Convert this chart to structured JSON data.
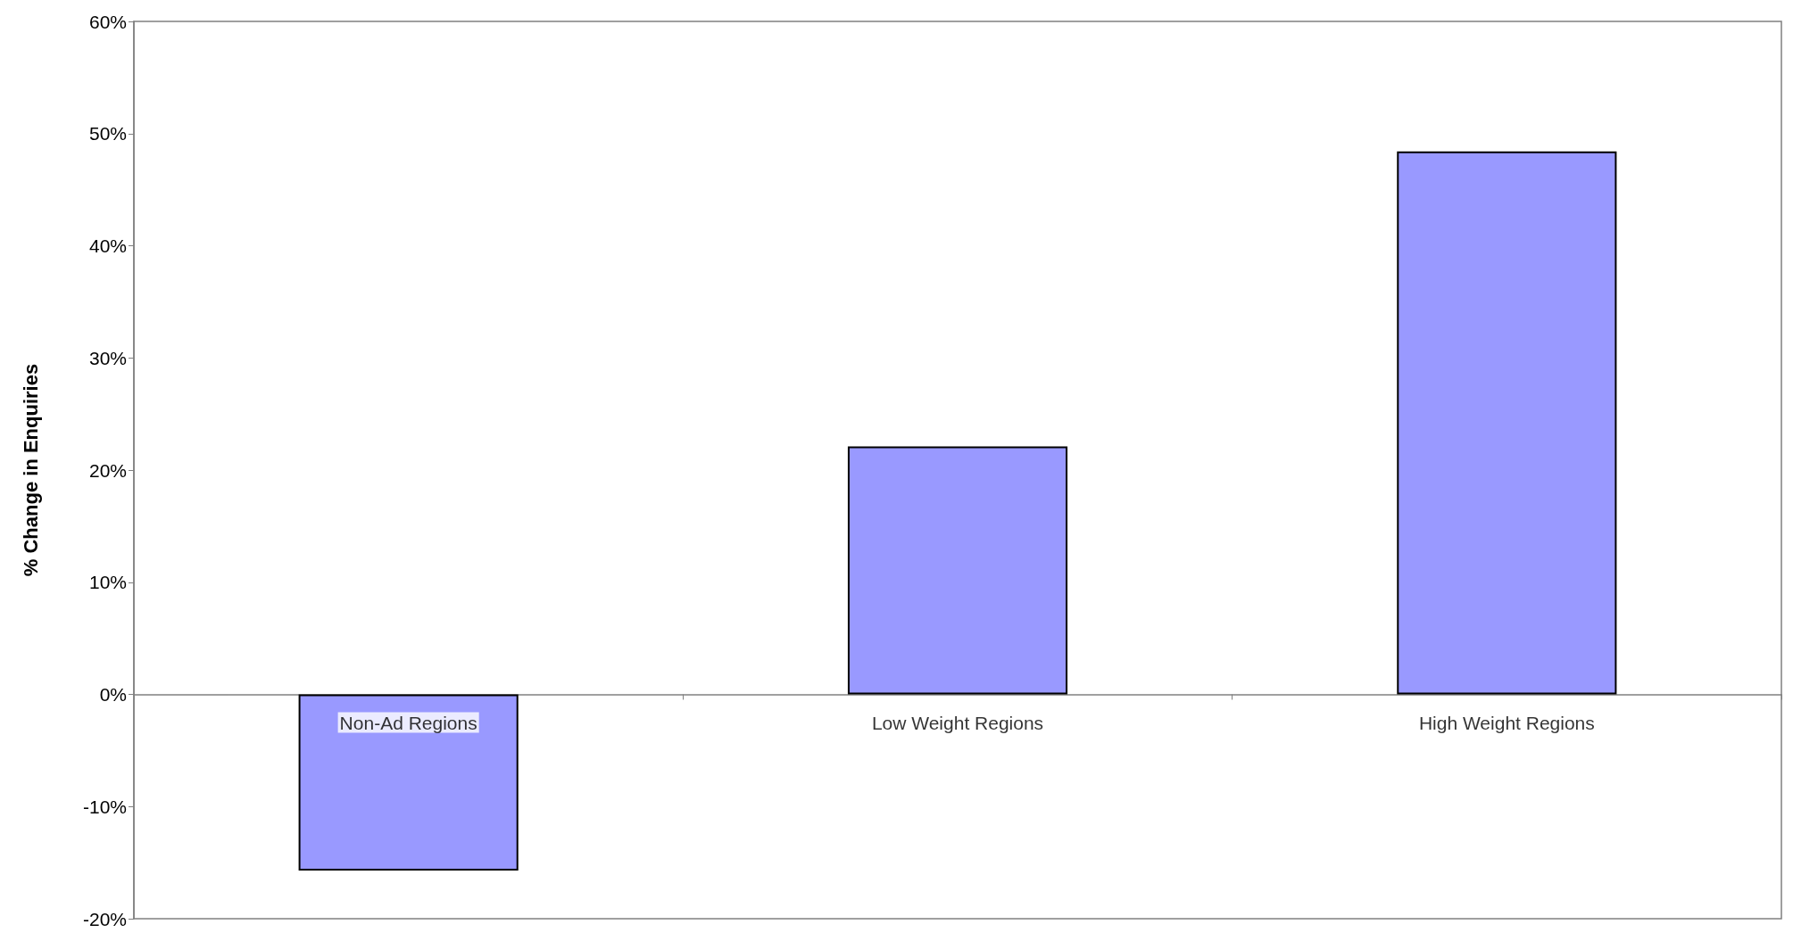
{
  "chart_data": {
    "type": "bar",
    "ylabel": "% Change in Enquiries",
    "categories": [
      "Non-Ad Regions",
      "Low Weight Regions",
      "High Weight Regions"
    ],
    "values": [
      -15.7,
      22.1,
      48.4
    ],
    "color": "#9999ff",
    "ylim": [
      -20,
      60
    ],
    "yticks": [
      {
        "value": -20,
        "label": "-20%"
      },
      {
        "value": -10,
        "label": "-10%"
      },
      {
        "value": 0,
        "label": "0%"
      },
      {
        "value": 10,
        "label": "10%"
      },
      {
        "value": 20,
        "label": "20%"
      },
      {
        "value": 30,
        "label": "30%"
      },
      {
        "value": 40,
        "label": "40%"
      },
      {
        "value": 50,
        "label": "50%"
      },
      {
        "value": 60,
        "label": "60%"
      }
    ],
    "grid": false
  }
}
